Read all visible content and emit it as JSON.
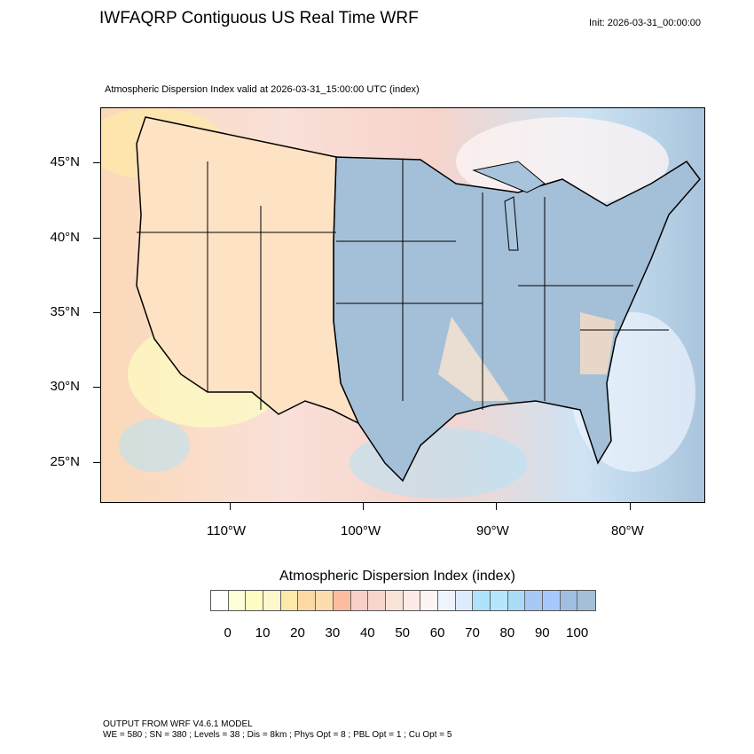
{
  "header": {
    "title": "IWFAQRP Contiguous US Real Time WRF",
    "init": "Init: 2026-03-31_00:00:00",
    "subtitle": "Atmospheric Dispersion Index valid at 2026-03-31_15:00:00 UTC   (index)"
  },
  "map": {
    "lat_labels": [
      "45°N",
      "40°N",
      "35°N",
      "30°N",
      "25°N"
    ],
    "lon_labels": [
      "110°W",
      "100°W",
      "90°W",
      "80°W"
    ]
  },
  "colorbar": {
    "title": "Atmospheric Dispersion Index  (index)",
    "labels": [
      "0",
      "10",
      "20",
      "30",
      "40",
      "50",
      "60",
      "70",
      "80",
      "90",
      "100"
    ],
    "colors": [
      "#ffffff",
      "#fefed8",
      "#fefec2",
      "#fcf8cc",
      "#fde9a8",
      "#fdd9a6",
      "#fddcae",
      "#fdbba0",
      "#f7d0c8",
      "#f8d6cc",
      "#f9e3d9",
      "#fcebe6",
      "#fdf4f4",
      "#eef3fd",
      "#dcecfd",
      "#aee3fb",
      "#b4e6fe",
      "#a8dcf8",
      "#a8c8f6",
      "#a8c8fc",
      "#a0bee2",
      "#a4c0d8"
    ]
  },
  "footer": {
    "line1": "OUTPUT FROM WRF V4.6.1 MODEL",
    "line2": "WE = 580 ; SN = 380 ; Levels = 38 ; Dis = 8km ; Phys Opt = 8 ; PBL Opt = 1 ; Cu Opt = 5"
  }
}
